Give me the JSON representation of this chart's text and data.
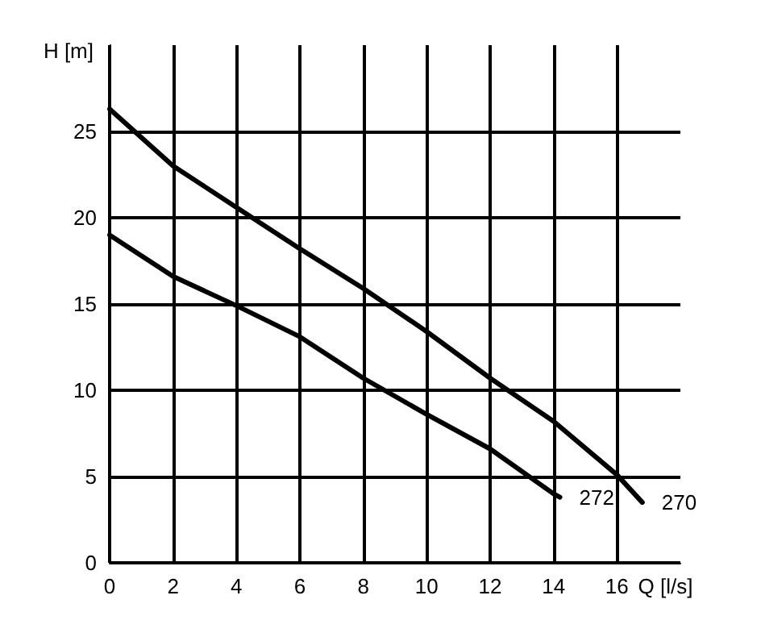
{
  "chart_data": {
    "type": "line",
    "xlabel": "Q [l/s]",
    "ylabel": "H [m]",
    "xlim": [
      0,
      18
    ],
    "xticks": [
      0,
      2,
      4,
      6,
      8,
      10,
      12,
      14,
      16
    ],
    "ylim": [
      0,
      30
    ],
    "yticks": [
      0,
      5,
      10,
      15,
      20,
      25
    ],
    "grid": true,
    "legend": false,
    "marker": "none",
    "line_style": "solid",
    "series": [
      {
        "name": "270",
        "color": "#000000",
        "x": [
          0,
          2,
          4,
          6,
          8,
          10,
          12,
          14,
          16,
          16.8
        ],
        "values": [
          26.3,
          23,
          20.6,
          18.2,
          15.9,
          13.4,
          10.7,
          8.2,
          5.1,
          3.5
        ]
      },
      {
        "name": "272",
        "color": "#000000",
        "x": [
          0,
          2,
          4,
          6,
          8,
          10,
          12,
          14,
          14.2
        ],
        "values": [
          19,
          16.6,
          14.9,
          13.1,
          10.7,
          8.6,
          6.6,
          4,
          3.8
        ]
      }
    ]
  }
}
